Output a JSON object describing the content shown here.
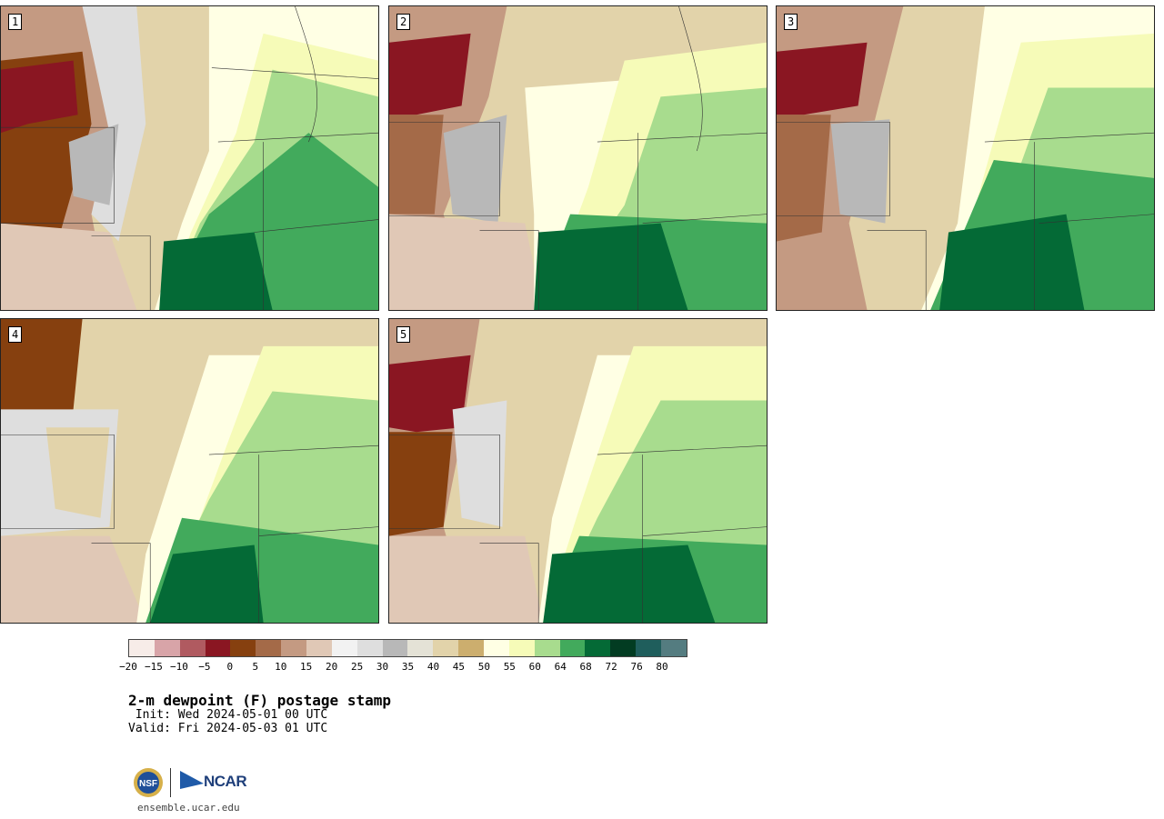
{
  "panels": [
    {
      "number": "1"
    },
    {
      "number": "2"
    },
    {
      "number": "3"
    },
    {
      "number": "4"
    },
    {
      "number": "5"
    }
  ],
  "colorbar": {
    "colors": [
      "#f7ece8",
      "#d8a4a8",
      "#b05a60",
      "#8a1622",
      "#86400f",
      "#a46a48",
      "#c49a82",
      "#e0c8b6",
      "#f2f2f2",
      "#dedede",
      "#b8b8b8",
      "#e4e2d6",
      "#e2d3aa",
      "#ccae6e",
      "#ffffe4",
      "#f6fbb8",
      "#a8dc8e",
      "#42aa5c",
      "#046a36",
      "#023c22",
      "#1f5e5c",
      "#547c80"
    ],
    "ticks": [
      "−20",
      "−15",
      "−10",
      "−5",
      "0",
      "5",
      "10",
      "15",
      "20",
      "25",
      "30",
      "35",
      "40",
      "45",
      "50",
      "55",
      "60",
      "64",
      "68",
      "72",
      "76",
      "80"
    ]
  },
  "title": "2-m dewpoint (F) postage stamp",
  "init": " Init: Wed 2024-05-01 00 UTC",
  "valid": "Valid: Fri 2024-05-03 01 UTC",
  "logos": {
    "ncar": "NCAR",
    "site": "ensemble.ucar.edu"
  }
}
